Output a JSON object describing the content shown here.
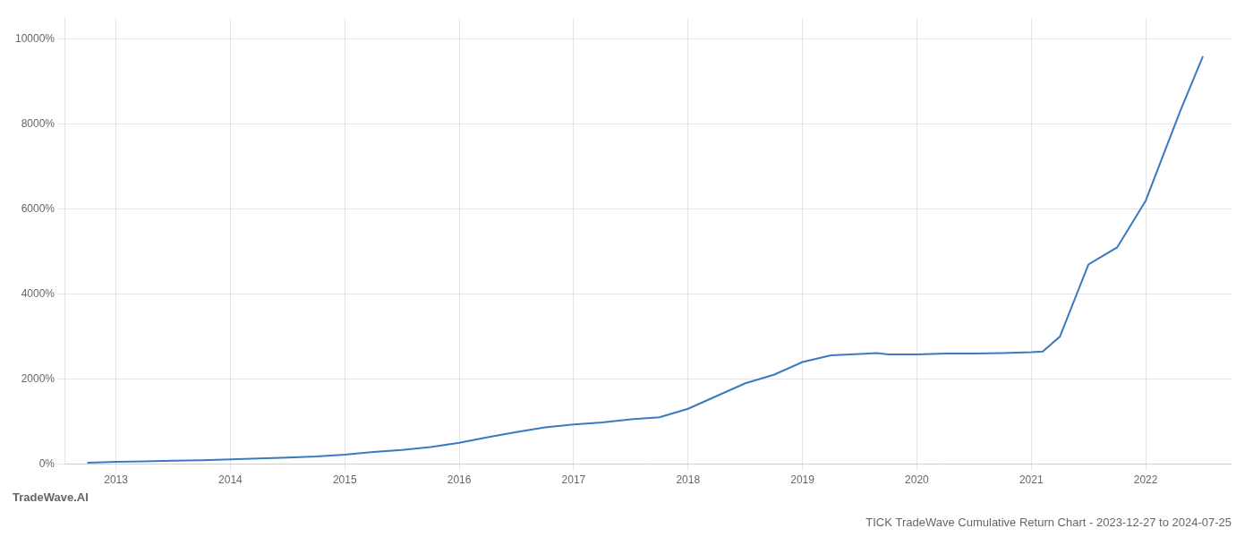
{
  "chart_data": {
    "type": "line",
    "title": "TICK TradeWave Cumulative Return Chart - 2023-12-27 to 2024-07-25",
    "subtitle": "TradeWave.AI",
    "x": [
      2012.75,
      2013.0,
      2013.25,
      2013.5,
      2013.75,
      2014.0,
      2014.25,
      2014.5,
      2014.75,
      2015.0,
      2015.25,
      2015.5,
      2015.75,
      2016.0,
      2016.25,
      2016.5,
      2016.75,
      2017.0,
      2017.25,
      2017.5,
      2017.75,
      2018.0,
      2018.25,
      2018.5,
      2018.75,
      2019.0,
      2019.25,
      2019.5,
      2019.65,
      2019.75,
      2020.0,
      2020.25,
      2020.5,
      2020.75,
      2021.0,
      2021.1,
      2021.25,
      2021.5,
      2021.75,
      2022.0,
      2022.3,
      2022.5
    ],
    "values": [
      30,
      50,
      60,
      75,
      90,
      110,
      130,
      150,
      175,
      220,
      280,
      330,
      400,
      500,
      630,
      750,
      860,
      930,
      980,
      1050,
      1100,
      1300,
      1600,
      1900,
      2100,
      2400,
      2560,
      2590,
      2610,
      2580,
      2580,
      2600,
      2600,
      2610,
      2630,
      2650,
      3000,
      4700,
      5100,
      6200,
      8300,
      9600
    ],
    "color": "#3a7abf",
    "xlim": [
      2012.55,
      2022.75
    ],
    "xticks": [
      2013,
      2014,
      2015,
      2016,
      2017,
      2018,
      2019,
      2020,
      2021,
      2022
    ],
    "ylim": [
      0,
      10500
    ],
    "yticks": [
      {
        "value": 0,
        "label": "0%"
      },
      {
        "value": 2000,
        "label": "2000%"
      },
      {
        "value": 4000,
        "label": "4000%"
      },
      {
        "value": 6000,
        "label": "6000%"
      },
      {
        "value": 8000,
        "label": "8000%"
      },
      {
        "value": 10000,
        "label": "10000%"
      }
    ],
    "grid": true
  }
}
